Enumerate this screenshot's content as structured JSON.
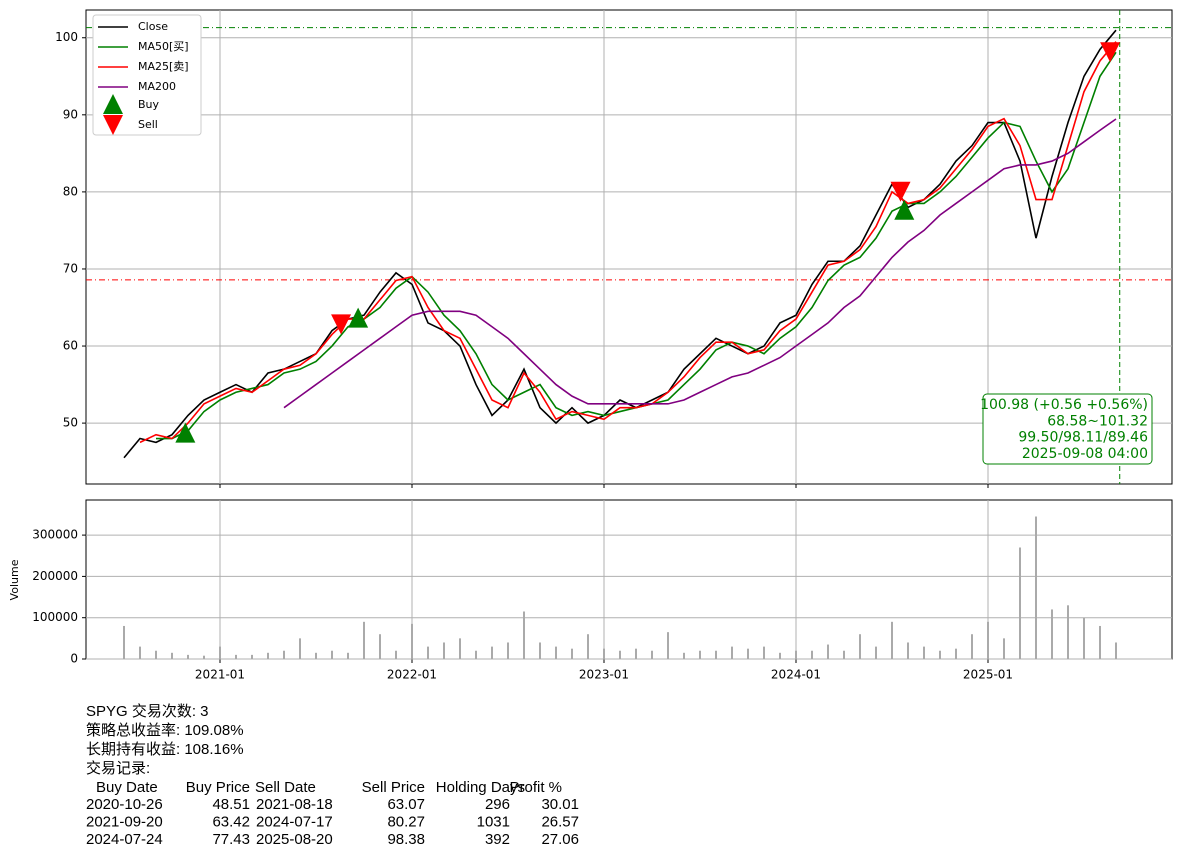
{
  "chart_data": {
    "type": "line",
    "categories": [
      null,
      null,
      null,
      null,
      null,
      null,
      "2021-01",
      null,
      null,
      null,
      null,
      null,
      null,
      null,
      null,
      null,
      null,
      null,
      "2022-01",
      null,
      null,
      null,
      null,
      null,
      null,
      null,
      null,
      null,
      null,
      null,
      "2023-01",
      null,
      null,
      null,
      null,
      null,
      null,
      null,
      null,
      null,
      null,
      null,
      "2024-01",
      null,
      null,
      null,
      null,
      null,
      null,
      null,
      null,
      null,
      null,
      null,
      "2025-01",
      null,
      null,
      null,
      null,
      null,
      null,
      null,
      null
    ],
    "ylim": [
      42.1,
      103.6
    ],
    "yticks": [
      50,
      60,
      70,
      80,
      90,
      100
    ],
    "grid": true,
    "series": [
      {
        "name": "Close",
        "color": "#000000",
        "values": [
          45.5,
          48,
          47.5,
          48.5,
          51,
          53,
          54,
          55,
          54,
          56.5,
          57,
          58,
          59,
          62,
          63.5,
          64,
          67,
          69.5,
          68,
          63,
          62,
          60,
          55,
          51,
          53,
          57,
          52,
          50,
          52,
          50,
          51,
          53,
          52,
          53,
          54,
          57,
          59,
          61,
          60,
          59,
          60,
          63,
          64,
          68,
          71,
          71,
          73,
          77,
          81,
          78,
          79,
          81,
          84,
          86,
          89,
          89,
          84,
          74,
          82,
          89,
          95,
          98.5,
          100.98
        ]
      },
      {
        "name": "MA50[买]",
        "color": "#008000",
        "values": [
          null,
          null,
          48,
          48,
          49,
          51.5,
          53,
          54,
          54.5,
          55,
          56.5,
          57,
          58,
          60,
          62.5,
          63.5,
          65,
          67.5,
          69,
          67,
          64,
          62,
          59,
          55,
          53,
          54,
          55,
          52,
          51,
          51.5,
          51,
          51.5,
          52,
          52.5,
          53,
          55,
          57,
          59.5,
          60.5,
          60,
          59,
          61,
          62.5,
          65,
          68.5,
          70.5,
          71.5,
          74,
          77.5,
          78.5,
          78.5,
          80,
          82,
          84.5,
          87,
          89,
          88.5,
          84,
          80,
          83,
          89,
          95,
          98.11
        ]
      },
      {
        "name": "MA25[卖]",
        "color": "#ff0000",
        "values": [
          null,
          47.5,
          48.5,
          48,
          50,
          52.5,
          53.5,
          54.5,
          54,
          55.5,
          57,
          57.5,
          59,
          61.5,
          63.5,
          63.5,
          66,
          68.5,
          69,
          65,
          62,
          61,
          57,
          53,
          52,
          56.5,
          54,
          50.5,
          51.5,
          51,
          50.5,
          52,
          52,
          52.5,
          54,
          56,
          58.5,
          60.5,
          60.5,
          59,
          59.5,
          62,
          63.5,
          67,
          70.5,
          71,
          72.5,
          75.5,
          80,
          78.5,
          79,
          80.5,
          83,
          85.5,
          88.5,
          89.5,
          86,
          79,
          79,
          86,
          93,
          97,
          99.5
        ]
      },
      {
        "name": "MA200",
        "color": "#800080",
        "values": [
          null,
          null,
          null,
          null,
          null,
          null,
          null,
          null,
          null,
          null,
          52,
          53.5,
          55,
          56.5,
          58,
          59.5,
          61,
          62.5,
          64,
          64.5,
          64.5,
          64.5,
          64,
          62.5,
          61,
          59,
          57,
          55,
          53.5,
          52.5,
          52.5,
          52.5,
          52.5,
          52.5,
          52.5,
          53,
          54,
          55,
          56,
          56.5,
          57.5,
          58.5,
          60,
          61.5,
          63,
          65,
          66.5,
          69,
          71.5,
          73.5,
          75,
          77,
          78.5,
          80,
          81.5,
          83,
          83.5,
          83.5,
          84,
          85,
          86.5,
          88,
          89.46
        ]
      }
    ],
    "markers": {
      "buy": {
        "name": "Buy",
        "color": "#008000"
      },
      "sell": {
        "name": "Sell",
        "color": "#ff0000"
      }
    },
    "hlines": [
      {
        "value": 101.32,
        "color": "#008000"
      },
      {
        "value": 68.58,
        "color": "#ff0000"
      }
    ],
    "annotation": [
      "100.98 (+0.56 +0.56%)",
      "68.58~101.32",
      "99.50/98.11/89.46",
      "2025-09-08 04:00"
    ],
    "annotation_color": "#008000",
    "volume": {
      "ylabel": "Volume",
      "color": "#aaaaaa",
      "ylim": [
        0,
        385000
      ],
      "yticks": [
        0,
        100000,
        200000,
        300000
      ],
      "values": [
        80000,
        30000,
        20000,
        15000,
        10000,
        8000,
        30000,
        10000,
        10000,
        15000,
        20000,
        50000,
        15000,
        20000,
        15000,
        90000,
        60000,
        20000,
        85000,
        30000,
        40000,
        50000,
        20000,
        30000,
        40000,
        115000,
        40000,
        30000,
        25000,
        60000,
        25000,
        20000,
        25000,
        20000,
        65000,
        15000,
        20000,
        20000,
        30000,
        25000,
        30000,
        15000,
        20000,
        20000,
        35000,
        20000,
        60000,
        30000,
        90000,
        40000,
        30000,
        20000,
        25000,
        60000,
        90000,
        50000,
        270000,
        345000,
        120000,
        130000,
        100000,
        80000,
        40000
      ]
    }
  },
  "summary": {
    "lines": [
      "SPYG 交易次数: 3",
      "策略总收益率: 109.08%",
      "长期持有收益: 108.16%"
    ]
  },
  "trades": {
    "title": "交易记录:",
    "columns": [
      "Buy Date",
      "Buy Price",
      "Sell Date",
      "Sell Price",
      "Holding Days",
      "Profit %"
    ],
    "rows": [
      [
        "2020-10-26",
        48.51,
        "2021-08-18",
        63.07,
        296,
        30.01
      ],
      [
        "2021-09-20",
        63.42,
        "2024-07-17",
        80.27,
        1031,
        26.57
      ],
      [
        "2024-07-24",
        77.43,
        "2025-08-20",
        98.38,
        392,
        27.06
      ]
    ]
  }
}
